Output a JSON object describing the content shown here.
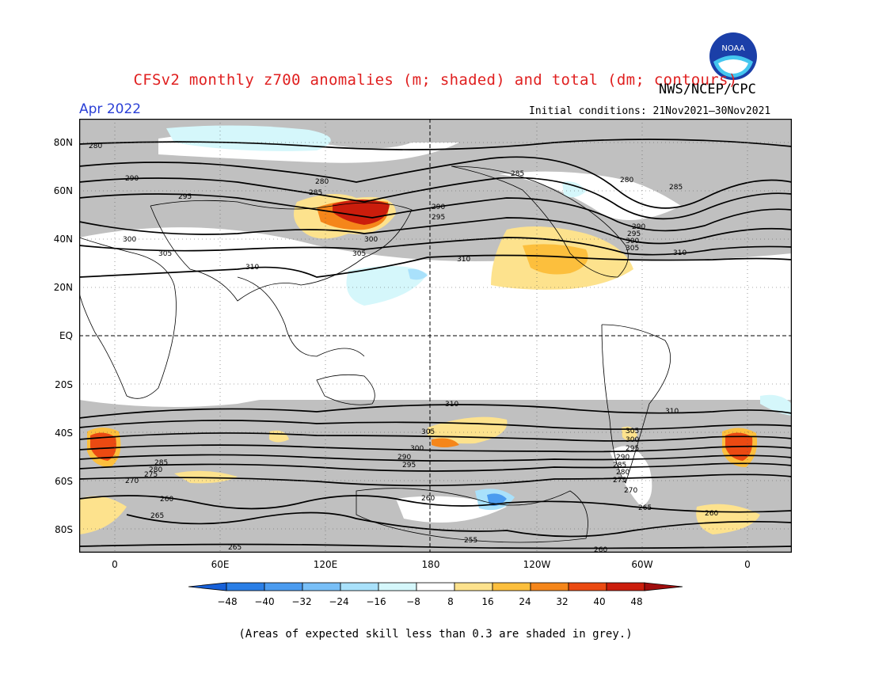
{
  "header": {
    "title": "CFSv2 monthly z700 anomalies (m; shaded) and total (dm; contours)",
    "agency": "NWS/NCEP/CPC",
    "month": "Apr 2022",
    "initial_conditions": "Initial conditions: 21Nov2021–30Nov2021",
    "logo_text": "NOAA"
  },
  "map": {
    "lat_labels": [
      "80N",
      "60N",
      "40N",
      "20N",
      "EQ",
      "20S",
      "40S",
      "60S",
      "80S"
    ],
    "lon_labels": [
      "0",
      "60E",
      "120E",
      "180",
      "120W",
      "60W",
      "0"
    ],
    "contour_labels": [
      "280",
      "290",
      "295",
      "300",
      "305",
      "310",
      "285",
      "280",
      "290",
      "295",
      "300",
      "305",
      "285",
      "280",
      "290",
      "295",
      "300",
      "305",
      "310",
      "310",
      "310",
      "305",
      "300",
      "290",
      "295",
      "285",
      "280",
      "275",
      "270",
      "260",
      "265",
      "265",
      "260",
      "255",
      "260",
      "265",
      "270",
      "275",
      "280",
      "285",
      "290",
      "295",
      "300",
      "305",
      "310",
      "260",
      "285"
    ],
    "colors": {
      "grey_skill": "#c0c0c0",
      "land_outline": "#000000"
    }
  },
  "colorbar": {
    "labels": [
      "−48",
      "−40",
      "−32",
      "−24",
      "−16",
      "−8",
      "8",
      "16",
      "24",
      "32",
      "40",
      "48"
    ],
    "colors": [
      "#1760d8",
      "#2a7ee6",
      "#4b9bef",
      "#78bff7",
      "#a9e1fb",
      "#d5f7fb",
      "#ffffff",
      "#fde28d",
      "#fcbf3d",
      "#f5861a",
      "#eb4a12",
      "#cb1d0c",
      "#a00d0d"
    ]
  },
  "footer": {
    "note": "(Areas of expected skill less than 0.3 are shaded in grey.)"
  }
}
